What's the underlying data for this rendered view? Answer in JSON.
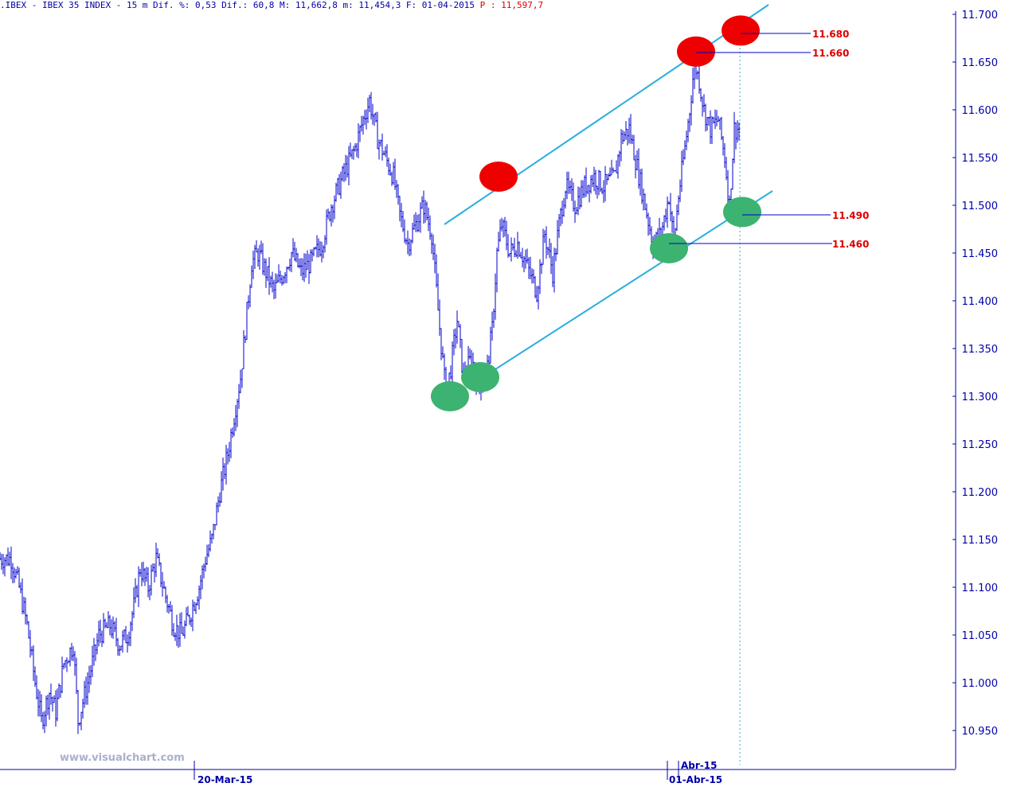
{
  "header": {
    "info": ".IBEX - IBEX 35 INDEX -  15 m Dif. %: 0,53 Dif.: 60,8 M: 11,662,8 m: 11,454,3 F: 01-04-2015",
    "price": "P : 11,597,7"
  },
  "watermark": "www.visualchart.com",
  "colors": {
    "background": "#ffffff",
    "bars": "#0000cc",
    "channel": "#29aee0",
    "resistance_marker": "#ee0000",
    "support_marker": "#3cb371",
    "level_label": "#dd0000",
    "axis_text": "#0000aa"
  },
  "chart_data": {
    "type": "ohlc",
    "title": "IBEX 35 INDEX",
    "timeframe": "15 m",
    "y_axis": {
      "position": "right",
      "min": 10.91,
      "max": 11.71,
      "ticks": [
        "11.700",
        "11.650",
        "11.600",
        "11.550",
        "11.500",
        "11.450",
        "11.400",
        "11.350",
        "11.300",
        "11.250",
        "11.200",
        "11.150",
        "11.100",
        "11.050",
        "11.000",
        "10.950"
      ]
    },
    "x_axis": {
      "labels": [
        "20-Mar-15",
        "Abr-15",
        "01-Abr-15"
      ]
    },
    "close_path": [
      [
        0,
        11.13
      ],
      [
        14,
        11.13
      ],
      [
        24,
        11.1
      ],
      [
        34,
        11.06
      ],
      [
        44,
        11.0
      ],
      [
        52,
        10.96
      ],
      [
        62,
        10.99
      ],
      [
        70,
        10.97
      ],
      [
        80,
        11.02
      ],
      [
        92,
        11.04
      ],
      [
        98,
        10.96
      ],
      [
        110,
        11.0
      ],
      [
        124,
        11.05
      ],
      [
        138,
        11.06
      ],
      [
        150,
        11.04
      ],
      [
        160,
        11.05
      ],
      [
        168,
        11.08
      ],
      [
        176,
        11.12
      ],
      [
        186,
        11.1
      ],
      [
        196,
        11.13
      ],
      [
        208,
        11.09
      ],
      [
        218,
        11.06
      ],
      [
        228,
        11.05
      ],
      [
        238,
        11.07
      ],
      [
        250,
        11.1
      ],
      [
        258,
        11.13
      ],
      [
        266,
        11.15
      ],
      [
        276,
        11.2
      ],
      [
        286,
        11.24
      ],
      [
        294,
        11.28
      ],
      [
        302,
        11.32
      ],
      [
        308,
        11.37
      ],
      [
        316,
        11.44
      ],
      [
        324,
        11.45
      ],
      [
        334,
        11.43
      ],
      [
        344,
        11.41
      ],
      [
        356,
        11.43
      ],
      [
        366,
        11.45
      ],
      [
        378,
        11.43
      ],
      [
        390,
        11.44
      ],
      [
        404,
        11.46
      ],
      [
        416,
        11.5
      ],
      [
        430,
        11.53
      ],
      [
        446,
        11.56
      ],
      [
        456,
        11.59
      ],
      [
        464,
        11.61
      ],
      [
        474,
        11.57
      ],
      [
        484,
        11.55
      ],
      [
        494,
        11.53
      ],
      [
        502,
        11.49
      ],
      [
        512,
        11.46
      ],
      [
        522,
        11.48
      ],
      [
        532,
        11.5
      ],
      [
        542,
        11.47
      ],
      [
        550,
        11.39
      ],
      [
        560,
        11.3
      ],
      [
        566,
        11.33
      ],
      [
        574,
        11.38
      ],
      [
        582,
        11.32
      ],
      [
        592,
        11.34
      ],
      [
        602,
        11.31
      ],
      [
        612,
        11.33
      ],
      [
        618,
        11.37
      ],
      [
        624,
        11.45
      ],
      [
        630,
        11.48
      ],
      [
        640,
        11.45
      ],
      [
        650,
        11.46
      ],
      [
        660,
        11.44
      ],
      [
        674,
        11.41
      ],
      [
        684,
        11.47
      ],
      [
        694,
        11.43
      ],
      [
        702,
        11.48
      ],
      [
        710,
        11.52
      ],
      [
        722,
        11.5
      ],
      [
        734,
        11.52
      ],
      [
        746,
        11.53
      ],
      [
        758,
        11.52
      ],
      [
        772,
        11.53
      ],
      [
        780,
        11.57
      ],
      [
        790,
        11.58
      ],
      [
        800,
        11.54
      ],
      [
        810,
        11.5
      ],
      [
        820,
        11.46
      ],
      [
        830,
        11.47
      ],
      [
        840,
        11.51
      ],
      [
        846,
        11.46
      ],
      [
        852,
        11.51
      ],
      [
        860,
        11.56
      ],
      [
        866,
        11.6
      ],
      [
        872,
        11.65
      ],
      [
        878,
        11.63
      ],
      [
        884,
        11.6
      ],
      [
        892,
        11.58
      ],
      [
        902,
        11.59
      ],
      [
        910,
        11.55
      ],
      [
        916,
        11.5
      ],
      [
        922,
        11.58
      ],
      [
        928,
        11.58
      ]
    ],
    "levels": [
      {
        "value": "11.680",
        "type": "resistance"
      },
      {
        "value": "11.660",
        "type": "resistance"
      },
      {
        "value": "11.490",
        "type": "support"
      },
      {
        "value": "11.460",
        "type": "support"
      }
    ],
    "channel": {
      "upper": {
        "start": [
          558,
          11.48
        ],
        "end": [
          965,
          11.71
        ]
      },
      "lower": {
        "start": [
          588,
          11.31
        ],
        "end": [
          970,
          11.515
        ]
      }
    },
    "markers": [
      {
        "type": "resistance",
        "x": 626,
        "y": 11.53
      },
      {
        "type": "resistance",
        "x": 874,
        "y": 11.661
      },
      {
        "type": "resistance",
        "x": 930,
        "y": 11.683
      },
      {
        "type": "support",
        "x": 565,
        "y": 11.3
      },
      {
        "type": "support",
        "x": 603,
        "y": 11.32
      },
      {
        "type": "support",
        "x": 840,
        "y": 11.455
      },
      {
        "type": "support",
        "x": 932,
        "y": 11.493
      }
    ]
  }
}
